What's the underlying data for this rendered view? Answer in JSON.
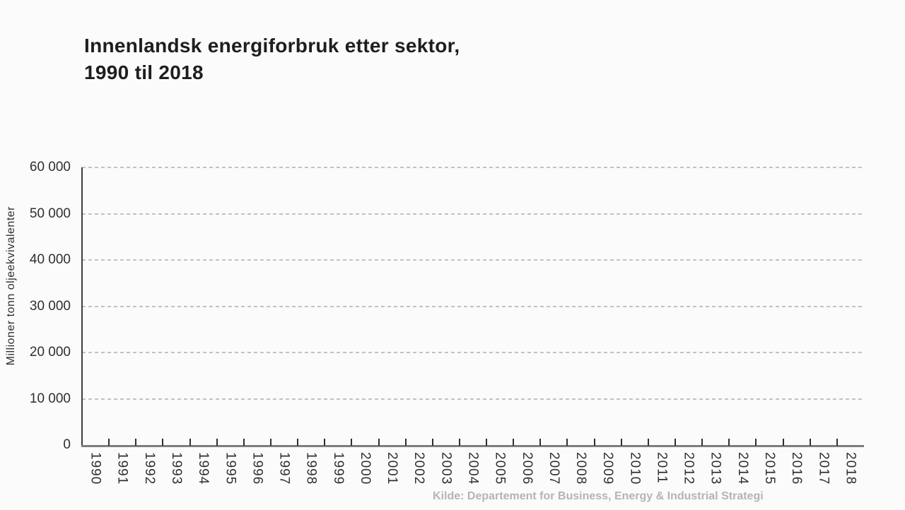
{
  "header": {
    "title_line1": "Innenlandsk energiforbruk etter sektor,",
    "title_line2": "1990 til 2018"
  },
  "footer": {
    "source": "Kilde: Departement for Business, Energy & Industrial Strategi"
  },
  "colors": {
    "background": "#fbfbfb",
    "title_text": "#1e1e1e",
    "tick_text": "#2f2f2f",
    "gridline": "#c2c2c2",
    "y_axis_line": "#3d3d3d",
    "x_axis_line": "#7d7d7d",
    "tick_mark": "#2f2f2f",
    "source_text": "#b4b4b4"
  },
  "chart_data": {
    "type": "line",
    "title": "Innenlandsk energiforbruk etter sektor, 1990 til 2018",
    "xlabel": "",
    "ylabel": "Millioner tonn oljeekvivalenter",
    "categories": [
      "1990",
      "1991",
      "1992",
      "1993",
      "1994",
      "1995",
      "1996",
      "1997",
      "1998",
      "1999",
      "2000",
      "2001",
      "2002",
      "2003",
      "2004",
      "2005",
      "2006",
      "2007",
      "2008",
      "2009",
      "2010",
      "2011",
      "2012",
      "2013",
      "2014",
      "2015",
      "2016",
      "2017",
      "2018"
    ],
    "series": [],
    "ylim": [
      0,
      60000
    ],
    "yticks": [
      0,
      10000,
      20000,
      30000,
      40000,
      50000,
      60000
    ],
    "ytick_labels": [
      "0",
      "10 000",
      "20 000",
      "30 000",
      "40 000",
      "50 000",
      "60 000"
    ],
    "grid": "horizontal-dashed",
    "legend": "none",
    "plot_state": "empty (no data series drawn)",
    "source": "Kilde: Departement for Business, Energy & Industrial Strategi"
  }
}
